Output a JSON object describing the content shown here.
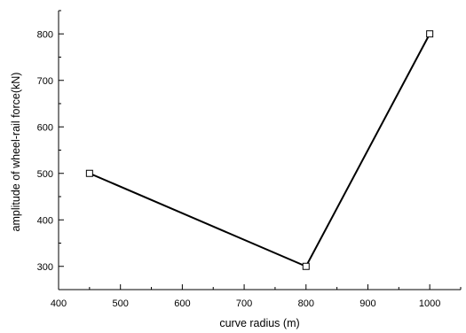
{
  "chart_data": {
    "type": "line",
    "xlabel": "curve radius (m)",
    "ylabel": "amplitude of wheel-rail force(kN)",
    "xlim": [
      400,
      1050
    ],
    "ylim": [
      250,
      850
    ],
    "x_ticks": [
      400,
      500,
      600,
      700,
      800,
      900,
      1000
    ],
    "y_ticks": [
      300,
      400,
      500,
      600,
      700,
      800
    ],
    "x_minor_step": 50,
    "y_minor_step": 50,
    "grid": false,
    "legend": "none",
    "series": [
      {
        "marker": "open-square",
        "color": "#000000",
        "x": [
          450,
          800,
          1000
        ],
        "y": [
          500,
          300,
          800
        ]
      }
    ]
  }
}
